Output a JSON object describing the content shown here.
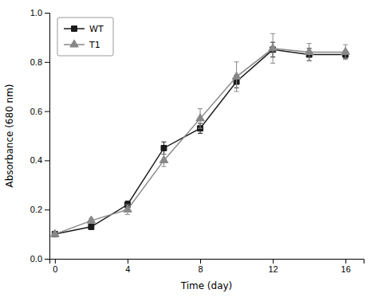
{
  "chart_data": {
    "type": "line",
    "x": [
      0,
      2,
      4,
      6,
      8,
      10,
      12,
      14,
      16
    ],
    "series": [
      {
        "name": "WT",
        "color": "#1a1a1a",
        "marker": "square",
        "values": [
          0.1,
          0.13,
          0.22,
          0.45,
          0.53,
          0.72,
          0.85,
          0.83,
          0.83
        ],
        "errors": [
          0.005,
          0.01,
          0.015,
          0.025,
          0.02,
          0.025,
          0.03,
          0.025,
          0.015
        ]
      },
      {
        "name": "T1",
        "color": "#888888",
        "marker": "triangle",
        "values": [
          0.1,
          0.155,
          0.2,
          0.4,
          0.57,
          0.74,
          0.855,
          0.84,
          0.84
        ],
        "errors": [
          0.005,
          0.01,
          0.02,
          0.025,
          0.04,
          0.06,
          0.06,
          0.035,
          0.03
        ]
      }
    ],
    "xlabel": "Time (day)",
    "ylabel": "Absorbance (680 nm)",
    "xlim": [
      -0.3,
      17.0
    ],
    "ylim": [
      0.0,
      1.0
    ],
    "xticks": [
      0,
      4,
      8,
      12,
      16
    ],
    "yticks": [
      {
        "value": 0.0,
        "label": "0.0"
      },
      0.2,
      0.4,
      0.6,
      0.8,
      {
        "value": 1.0,
        "label": "1.0"
      }
    ],
    "legend": "upper left"
  }
}
